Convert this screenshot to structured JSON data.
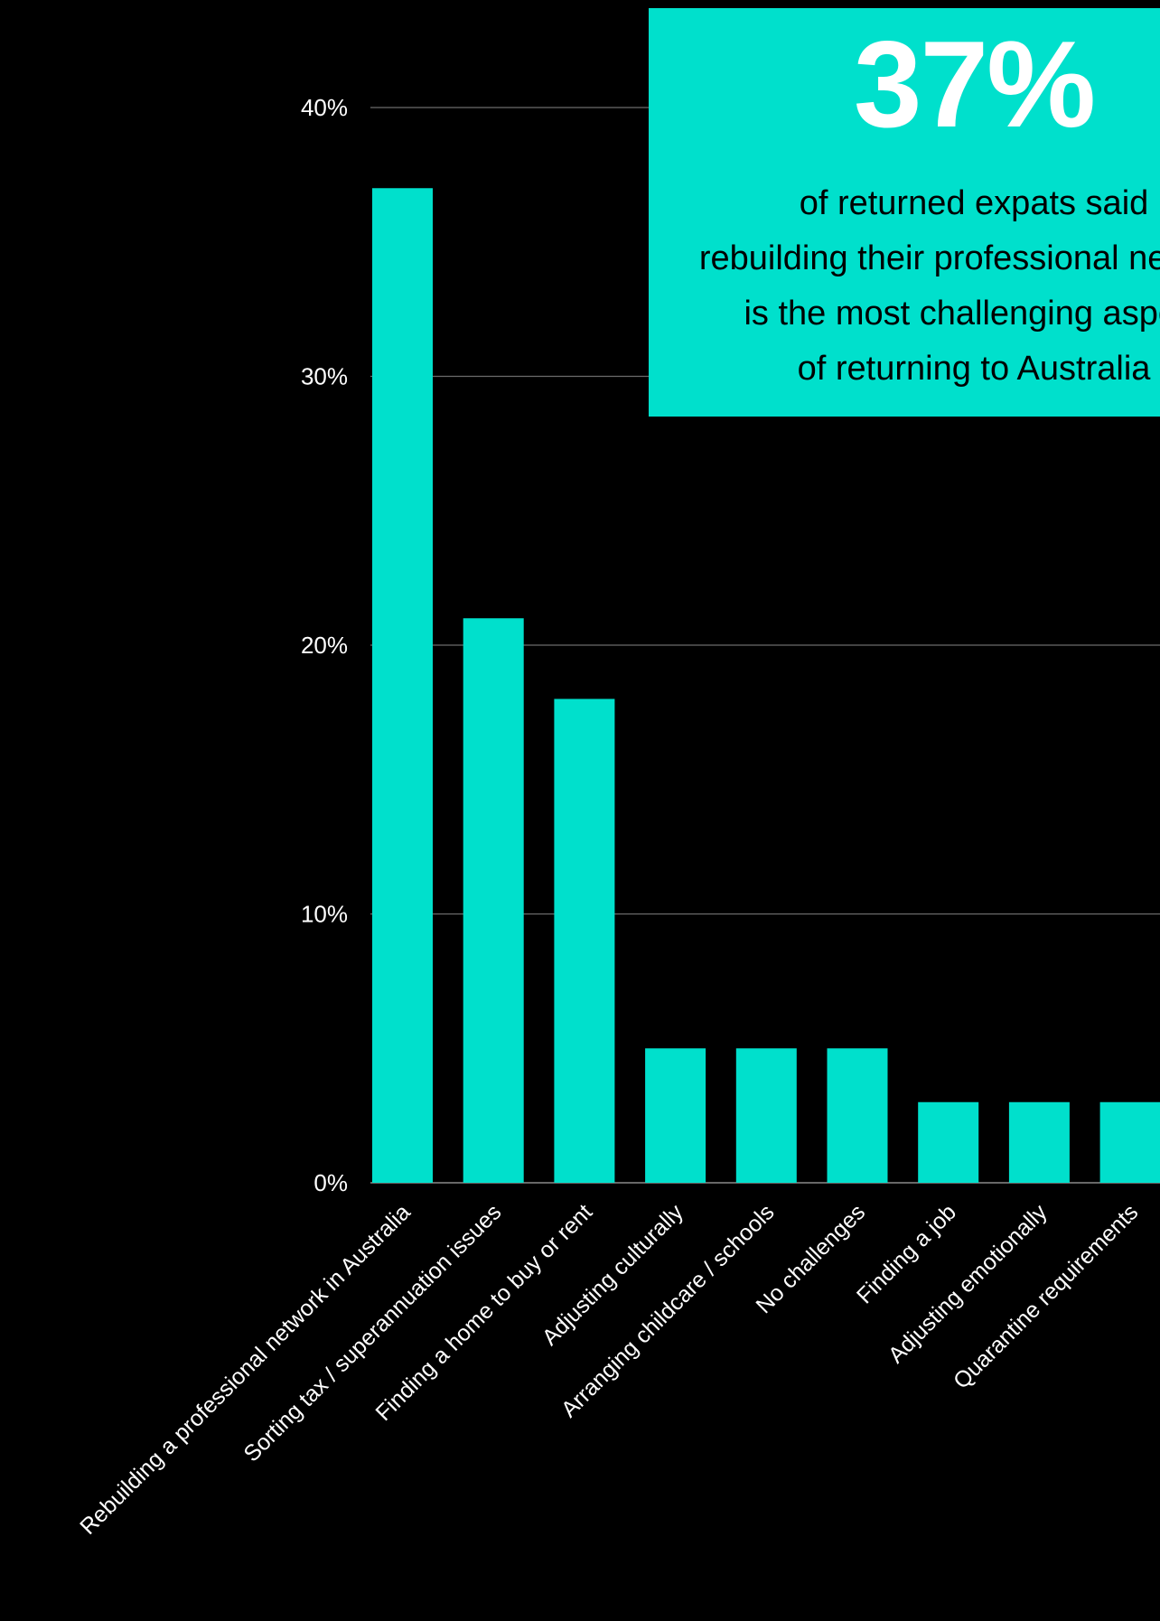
{
  "colors": {
    "background": "#000000",
    "bar": "#00e0cc",
    "gridline": "#6b6b6b",
    "text": "#ffffff",
    "callout_background": "#00e0cc",
    "callout_text": "#000000",
    "callout_stat": "#ffffff"
  },
  "callout": {
    "stat": "37%",
    "lines": [
      "of returned expats said",
      "rebuilding their professional network",
      "is the most challenging aspect",
      "of returning to Australia"
    ]
  },
  "chart_data": {
    "type": "bar",
    "title": "",
    "xlabel": "",
    "ylabel": "",
    "ylim": [
      0,
      40
    ],
    "yticks": [
      0,
      10,
      20,
      30,
      40
    ],
    "ytick_labels": [
      "0%",
      "10%",
      "20%",
      "30%",
      "40%"
    ],
    "grid": true,
    "categories": [
      "Rebuilding a professional network in Australia",
      "Sorting tax / superannuation issues",
      "Finding a home to buy or rent",
      "Adjusting culturally",
      "Arranging childcare / schools",
      "No challenges",
      "Finding a job",
      "Adjusting emotionally",
      "Quarantine requirements"
    ],
    "values": [
      37,
      21,
      18,
      5,
      5,
      5,
      3,
      3,
      3
    ]
  }
}
